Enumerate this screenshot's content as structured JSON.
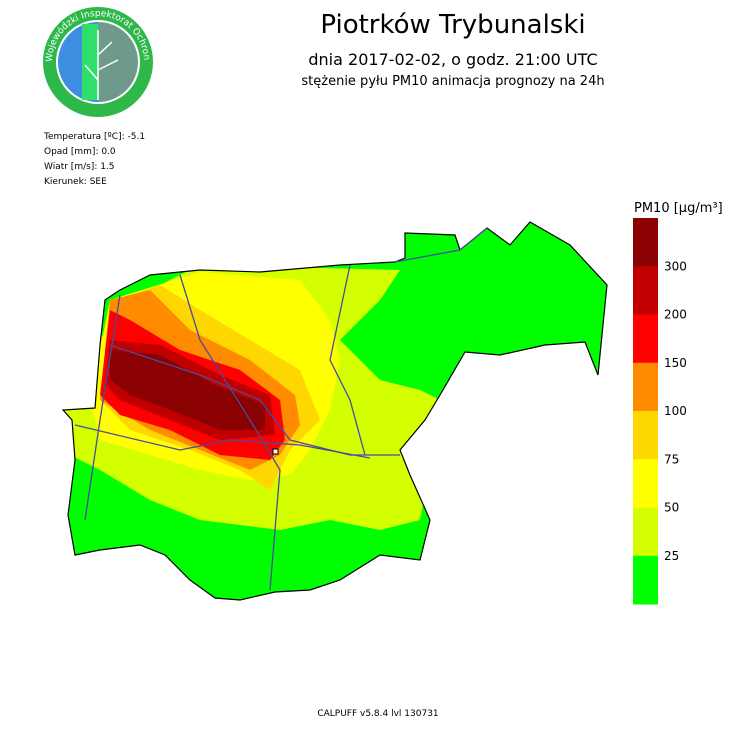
{
  "header": {
    "title": "Piotrków Trybunalski",
    "subtitle": "dnia 2017-02-02, o godz. 21:00 UTC",
    "description": "stężenie pyłu PM10 animacja prognozy na 24h"
  },
  "logo": {
    "text": "Wojewódzki Inspektorat Ochrony Środowiska w Łodzi"
  },
  "weather": [
    "Temperatura [ºC]: -5.1",
    "Opad [mm]: 0.0",
    "Wiatr [m/s]: 1.5",
    "Kierunek: SEE"
  ],
  "legend": {
    "title": "PM10 [µg/m³]",
    "colors": [
      "#8b0000",
      "#c00000",
      "#ff0000",
      "#ff8c00",
      "#ffd700",
      "#ffff00",
      "#d4ff00",
      "#00ff00"
    ],
    "labels": [
      "300",
      "200",
      "150",
      "100",
      "75",
      "50",
      "25"
    ]
  },
  "footer": "CALPUFF v5.8.4 lvl 130731"
}
